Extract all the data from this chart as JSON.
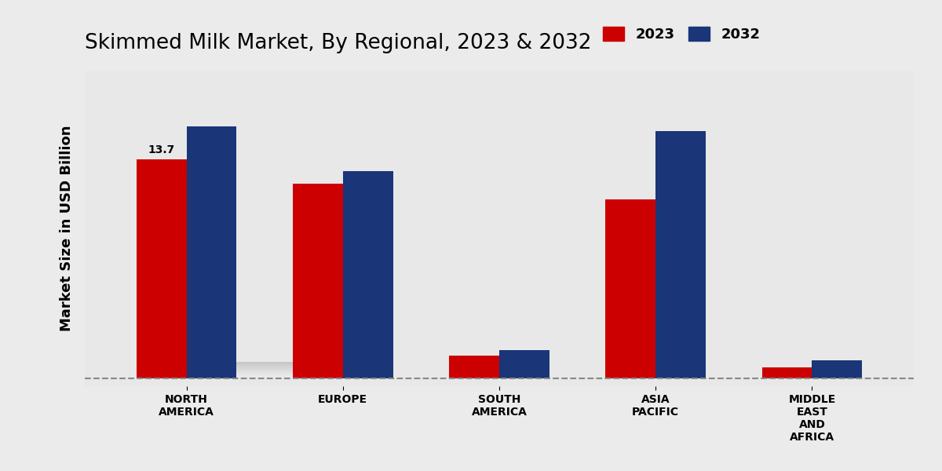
{
  "title": "Skimmed Milk Market, By Regional, 2023 & 2032",
  "ylabel": "Market Size in USD Billion",
  "categories": [
    "NORTH\nAMERICA",
    "EUROPE",
    "SOUTH\nAMERICA",
    "ASIA\nPACIFIC",
    "MIDDLE\nEAST\nAND\nAFRICA"
  ],
  "values_2023": [
    13.7,
    12.2,
    1.4,
    11.2,
    0.7
  ],
  "values_2032": [
    15.8,
    13.0,
    1.75,
    15.5,
    1.1
  ],
  "color_2023": "#cc0000",
  "color_2032": "#1a3578",
  "bar_width": 0.32,
  "annotation_text": "13.7",
  "dashed_line_y": 0.0,
  "bg_color_top": "#e8e8e8",
  "bg_color_bottom": "#f5f5f5",
  "legend_labels": [
    "2023",
    "2032"
  ],
  "title_fontsize": 19,
  "ylabel_fontsize": 13,
  "tick_fontsize": 10,
  "legend_fontsize": 13
}
